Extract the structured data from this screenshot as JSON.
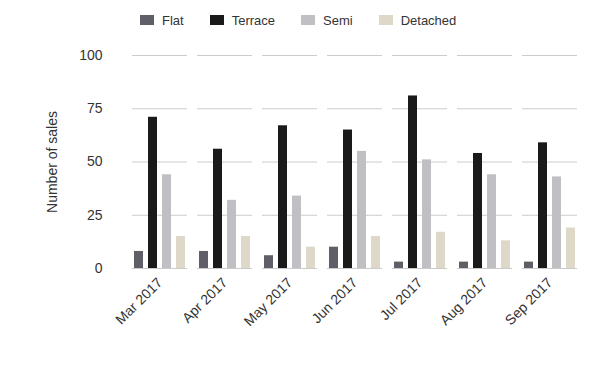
{
  "chart_data": {
    "type": "bar",
    "categories": [
      "Mar 2017",
      "Apr 2017",
      "May 2017",
      "Jun 2017",
      "Jul 2017",
      "Aug 2017",
      "Sep 2017"
    ],
    "series": [
      {
        "name": "Flat",
        "color": "#5f5f67",
        "values": [
          8,
          8,
          6,
          10,
          3,
          3,
          3
        ]
      },
      {
        "name": "Terrace",
        "color": "#1a1a1a",
        "values": [
          71,
          56,
          67,
          65,
          81,
          54,
          59
        ]
      },
      {
        "name": "Semi",
        "color": "#c0c0c4",
        "values": [
          44,
          32,
          34,
          55,
          51,
          44,
          43
        ]
      },
      {
        "name": "Detached",
        "color": "#ddd8c8",
        "values": [
          15,
          15,
          10,
          15,
          17,
          13,
          19
        ]
      }
    ],
    "y_label": "Number of sales",
    "ylim": [
      0,
      100
    ],
    "yticks": [
      0,
      25,
      50,
      75,
      100
    ],
    "grid": true,
    "legend": "top"
  }
}
